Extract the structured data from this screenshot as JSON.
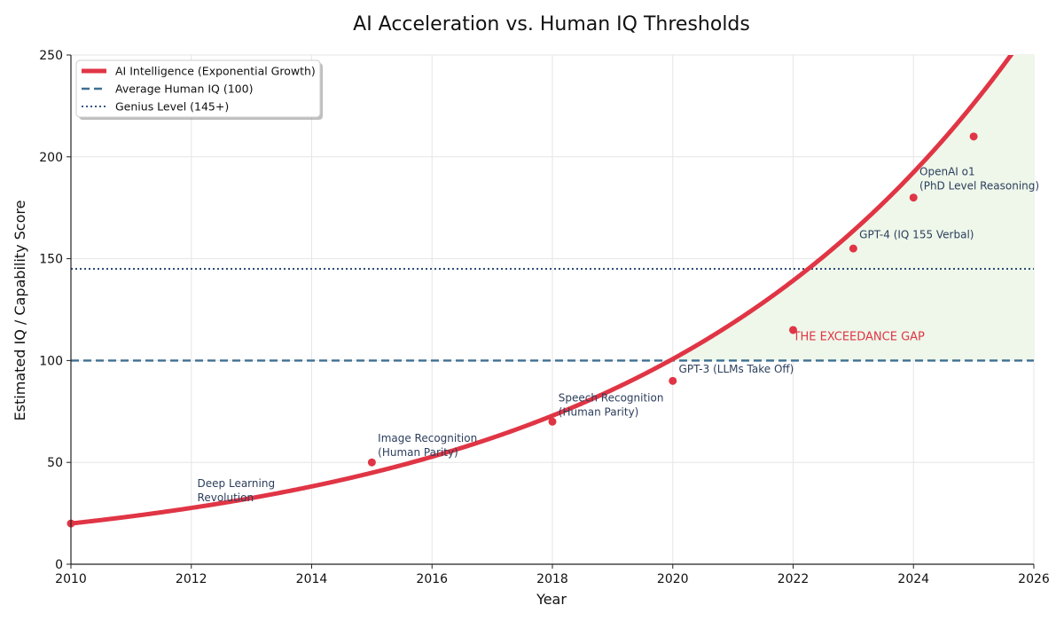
{
  "chart_data": {
    "type": "line",
    "title": "AI Acceleration vs. Human IQ Thresholds",
    "xlabel": "Year",
    "ylabel": "Estimated IQ / Capability Score",
    "xlim": [
      2010,
      2026
    ],
    "ylim": [
      0,
      250
    ],
    "xticks": [
      "2010",
      "2012",
      "2014",
      "2016",
      "2018",
      "2020",
      "2022",
      "2024",
      "2026"
    ],
    "yticks": [
      "0",
      "50",
      "100",
      "150",
      "200",
      "250"
    ],
    "grid": true,
    "legend_position": "top-left",
    "series": [
      {
        "name": "AI Intelligence (Exponential Growth)",
        "kind": "curve",
        "color": "#e03545",
        "function": "20*exp(0.1617*(x-2010))",
        "x": [
          2010,
          2011,
          2012,
          2013,
          2014,
          2015,
          2016,
          2017,
          2018,
          2019,
          2020,
          2021,
          2022,
          2023,
          2024,
          2025,
          2025.6
        ],
        "values": [
          20,
          23.5,
          27.6,
          32.5,
          38.2,
          45.0,
          52.7,
          62.0,
          73.0,
          86.0,
          101,
          119,
          140,
          164,
          193,
          227,
          250
        ]
      },
      {
        "name": "Average Human IQ (100)",
        "kind": "hline",
        "value": 100,
        "style": "dashed",
        "color": "#3e6f92"
      },
      {
        "name": "Genius Level (145+)",
        "kind": "hline",
        "value": 145,
        "style": "dotted",
        "color": "#1f3f6e"
      },
      {
        "name": "Milestones",
        "kind": "scatter",
        "color": "#e03545",
        "points": [
          {
            "x": 2010,
            "y": 20
          },
          {
            "x": 2015,
            "y": 50
          },
          {
            "x": 2018,
            "y": 70
          },
          {
            "x": 2020,
            "y": 90
          },
          {
            "x": 2022,
            "y": 115
          },
          {
            "x": 2023,
            "y": 155
          },
          {
            "x": 2024,
            "y": 180
          },
          {
            "x": 2025,
            "y": 210
          }
        ]
      }
    ],
    "annotations": [
      {
        "x": 2012.1,
        "y": 38,
        "lines": [
          "Deep Learning",
          "Revolution"
        ],
        "color": "#2c3e5c"
      },
      {
        "x": 2015.1,
        "y": 60,
        "lines": [
          "Image Recognition",
          "(Human Parity)"
        ],
        "color": "#2c3e5c"
      },
      {
        "x": 2018.1,
        "y": 80,
        "lines": [
          "Speech Recognition",
          "(Human Parity)"
        ],
        "color": "#2c3e5c"
      },
      {
        "x": 2020.1,
        "y": 94,
        "lines": [
          "GPT-3 (LLMs Take Off)"
        ],
        "color": "#2c3e5c"
      },
      {
        "x": 2023.1,
        "y": 160,
        "lines": [
          "GPT-4 (IQ 155 Verbal)"
        ],
        "color": "#2c3e5c"
      },
      {
        "x": 2024.1,
        "y": 191,
        "lines": [
          "OpenAI o1",
          "(PhD Level Reasoning)"
        ],
        "color": "#2c3e5c"
      },
      {
        "x": 2022.0,
        "y": 110,
        "lines": [
          "THE EXCEEDANCE GAP"
        ],
        "color": "#e03545"
      }
    ],
    "shaded_region": {
      "from_x": 2020,
      "to_x": 2026,
      "above": 100,
      "color": "#eef7ea"
    }
  }
}
